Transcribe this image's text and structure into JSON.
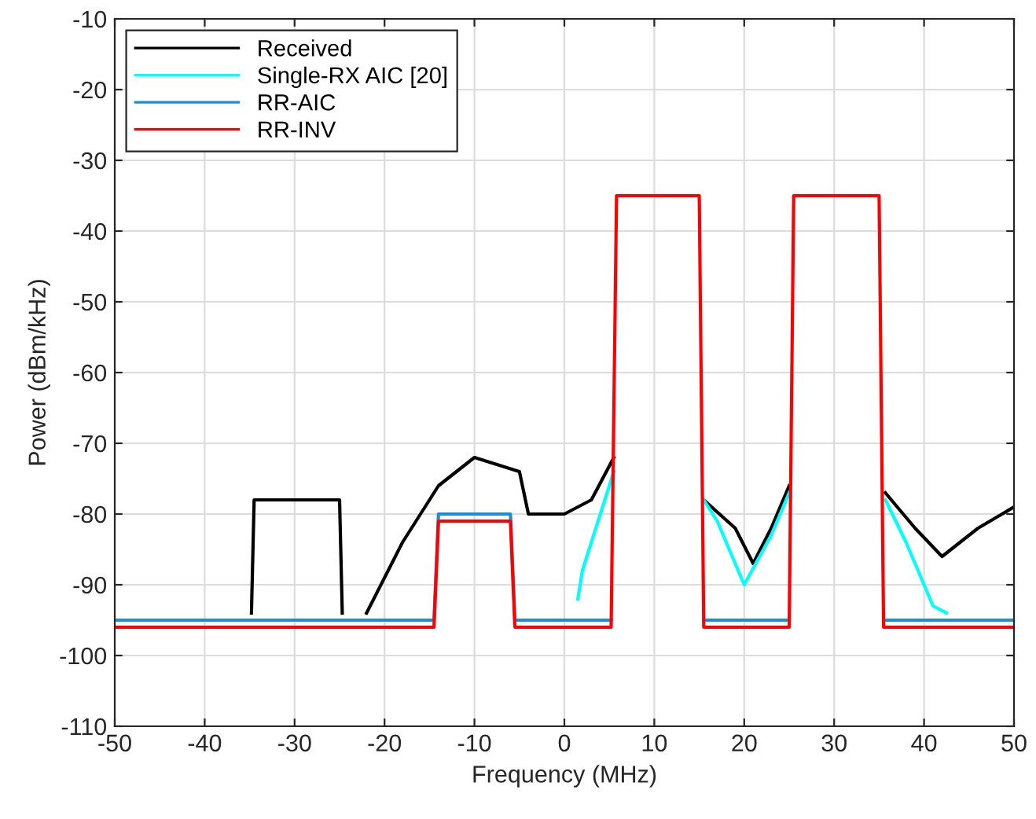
{
  "chart_data": {
    "type": "line",
    "xlabel": "Frequency (MHz)",
    "ylabel": "Power (dBm/kHz)",
    "xlim": [
      -50,
      50
    ],
    "xticks": [
      -50,
      -40,
      -30,
      -20,
      -10,
      0,
      10,
      20,
      30,
      40,
      50
    ],
    "ylim": [
      -110,
      -10
    ],
    "yticks": [
      -110,
      -100,
      -90,
      -80,
      -70,
      -60,
      -50,
      -40,
      -30,
      -20,
      -10
    ],
    "grid": true,
    "legend": "top left",
    "marker": "none",
    "line_style": "solid",
    "series": [
      {
        "name": "Received",
        "color": "#000000",
        "x": [
          -34.8,
          -34.5,
          -25,
          -24.7,
          -24,
          -22,
          -18,
          -14,
          -10,
          -5,
          -4,
          0,
          3,
          5.5,
          5.8,
          15.5,
          19,
          21,
          23,
          25,
          25.3,
          35.7,
          39,
          42,
          46,
          50
        ],
        "values": [
          -94,
          -78,
          -78,
          -94,
          null,
          -94,
          -84,
          -76,
          -72,
          -74,
          -80,
          -80,
          -78,
          -72,
          null,
          -78,
          -82,
          -87,
          -82,
          -76,
          null,
          -77,
          -82,
          -86,
          -82,
          -79
        ]
      },
      {
        "name": "Single-RX AIC [20]",
        "color": "#00ffff",
        "x": [
          1.5,
          2,
          4,
          5.5,
          5.8,
          15.5,
          17,
          20,
          23,
          25,
          25.3,
          35.7,
          38,
          41,
          42.5
        ],
        "values": [
          -92,
          -88,
          -80,
          -74,
          null,
          -78,
          -81,
          -90,
          -83,
          -77,
          null,
          -78,
          -84,
          -93,
          -94
        ]
      },
      {
        "name": "RR-AIC",
        "color": "#1a8fd8",
        "x": [
          -50,
          -14.5,
          -14,
          -6,
          -5.5,
          5.2,
          5.8,
          15,
          15.5,
          25,
          25.5,
          35,
          35.5,
          50
        ],
        "values": [
          -95,
          -95,
          -80,
          -80,
          -95,
          -95,
          null,
          null,
          -95,
          -95,
          null,
          null,
          -95,
          -95
        ]
      },
      {
        "name": "RR-INV",
        "color": "#ff0000",
        "x": [
          -50,
          -14.5,
          -14,
          -6,
          -5.5,
          5.2,
          5.8,
          15,
          15.5,
          25,
          25.5,
          35,
          35.5,
          50
        ],
        "values": [
          -96,
          -96,
          -81,
          -81,
          -96,
          -96,
          -35,
          -35,
          -96,
          -96,
          -35,
          -35,
          -96,
          -96
        ]
      }
    ]
  }
}
